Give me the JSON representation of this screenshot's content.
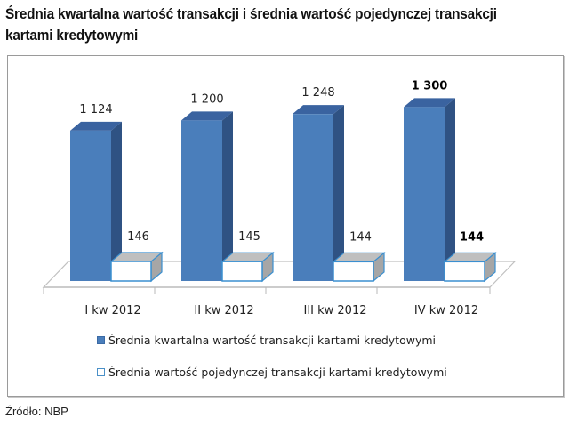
{
  "title": "Średnia kwartalna wartość transakcji i średnia wartość pojedynczej transakcji kartami kredytowymi",
  "source": "Źródło: NBP",
  "legend": [
    {
      "label": "Średnia kwartalna wartość transakcji kartami kredytowymi",
      "color": "#4a7ebb"
    },
    {
      "label": "Średnia wartość pojedynczej transakcji kartami kredytowymi",
      "color": "#ffffff"
    }
  ],
  "chart_data": {
    "type": "bar",
    "subtype": "3d-clustered-column",
    "title": "Średnia kwartalna wartość transakcji i średnia wartość pojedynczej transakcji kartami kredytowymi",
    "categories": [
      "I kw 2012",
      "II kw 2012",
      "III kw 2012",
      "IV kw 2012"
    ],
    "series": [
      {
        "name": "Średnia kwartalna wartość transakcji kartami kredytowymi",
        "values": [
          1124,
          1200,
          1248,
          1300
        ],
        "labels": [
          "1 124",
          "1 200",
          "1 248",
          "1 300"
        ],
        "color": "#4a7ebb"
      },
      {
        "name": "Średnia wartość pojedynczej transakcji kartami kredytowymi",
        "values": [
          146,
          145,
          144,
          144
        ],
        "labels": [
          "146",
          "145",
          "144",
          "144"
        ],
        "color": "#ffffff"
      }
    ],
    "bold_labels": [
      "1 300",
      "144 (IV kw 2012)"
    ],
    "xlabel": "",
    "ylabel": "",
    "grid": false,
    "axis_visible": false,
    "legend_position": "bottom",
    "source": "Źródło: NBP"
  }
}
